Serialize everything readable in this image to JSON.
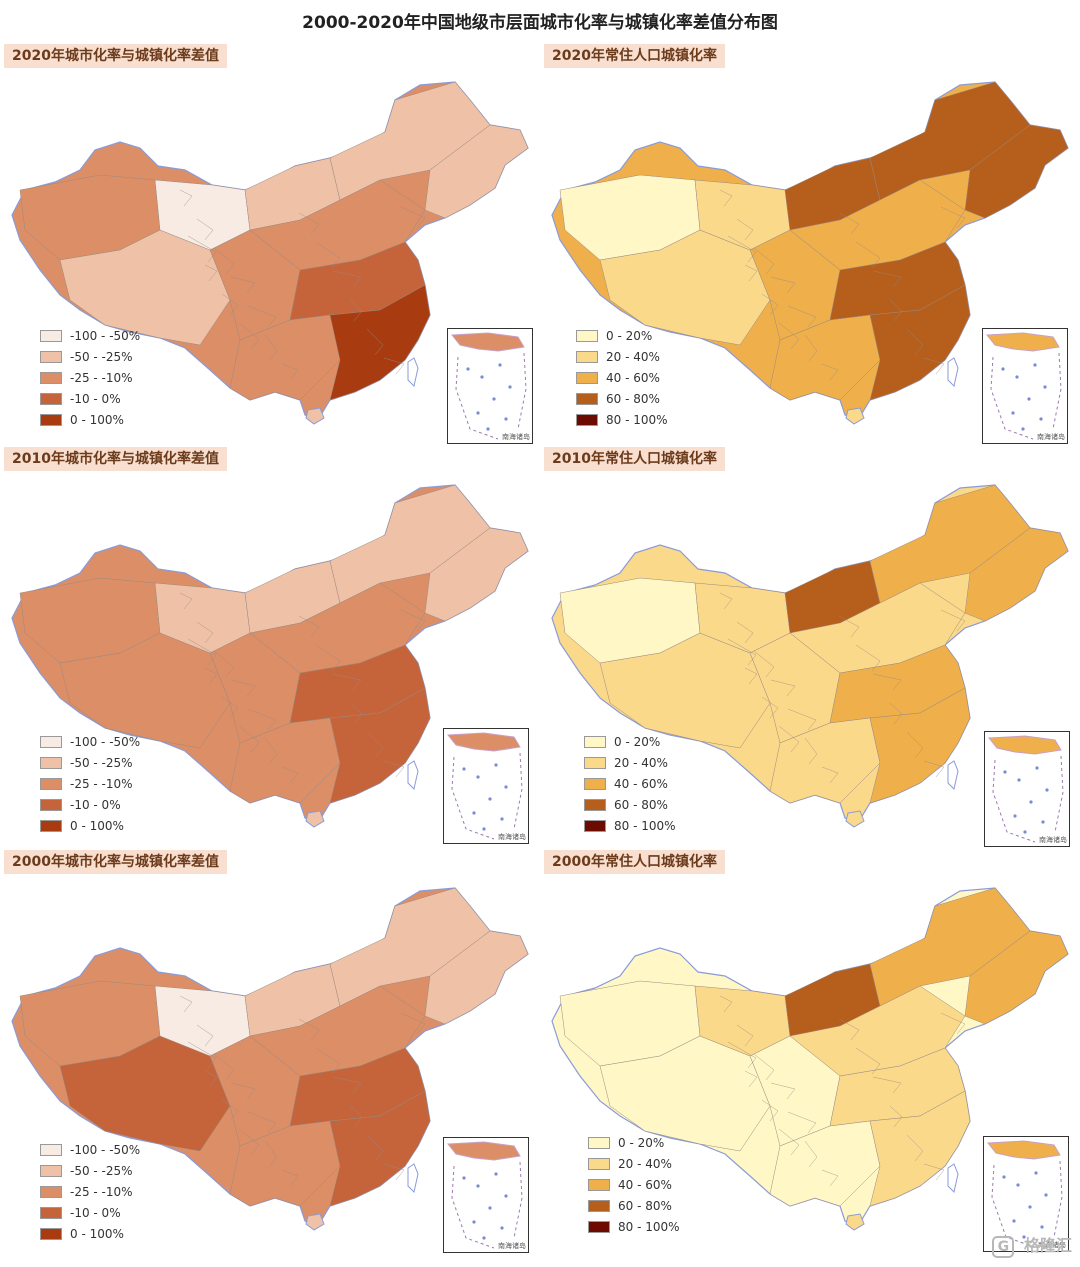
{
  "title": "2000-2020年中国地级市层面城市化率与城镇化率差值分布图",
  "panels": [
    {
      "id": "diff-2020",
      "title": "2020年城市化率与城镇化率差值",
      "legend": [
        {
          "label": "-100 - -50%",
          "color": "#f7ebe4"
        },
        {
          "label": "-50 - -25%",
          "color": "#efc2a8"
        },
        {
          "label": "-25 - -10%",
          "color": "#dc8e67"
        },
        {
          "label": "-10 - 0%",
          "color": "#c5643a"
        },
        {
          "label": "0 - 100%",
          "color": "#a83c10"
        }
      ],
      "dominant_color": "#dc8e67"
    },
    {
      "id": "urb-2020",
      "title": "2020年常住人口城镇化率",
      "legend": [
        {
          "label": "0 - 20%",
          "color": "#fff8c6"
        },
        {
          "label": "20 - 40%",
          "color": "#fbd98b"
        },
        {
          "label": "40 - 60%",
          "color": "#efb04c"
        },
        {
          "label": "60 - 80%",
          "color": "#b65e1c"
        },
        {
          "label": "80 - 100%",
          "color": "#6e0b00"
        }
      ],
      "dominant_color": "#efb04c"
    },
    {
      "id": "diff-2010",
      "title": "2010年城市化率与城镇化率差值",
      "legend": [
        {
          "label": "-100 - -50%",
          "color": "#f7ebe4"
        },
        {
          "label": "-50 - -25%",
          "color": "#efc2a8"
        },
        {
          "label": "-25 - -10%",
          "color": "#dc8e67"
        },
        {
          "label": "-10 - 0%",
          "color": "#c5643a"
        },
        {
          "label": "0 - 100%",
          "color": "#a83c10"
        }
      ],
      "dominant_color": "#dc8e67"
    },
    {
      "id": "urb-2010",
      "title": "2010年常住人口城镇化率",
      "legend": [
        {
          "label": "0 - 20%",
          "color": "#fff8c6"
        },
        {
          "label": "20 - 40%",
          "color": "#fbd98b"
        },
        {
          "label": "40 - 60%",
          "color": "#efb04c"
        },
        {
          "label": "60 - 80%",
          "color": "#b65e1c"
        },
        {
          "label": "80 - 100%",
          "color": "#6e0b00"
        }
      ],
      "dominant_color": "#fbd98b"
    },
    {
      "id": "diff-2000",
      "title": "2000年城市化率与城镇化率差值",
      "legend": [
        {
          "label": "-100 - -50%",
          "color": "#f7ebe4"
        },
        {
          "label": "-50 - -25%",
          "color": "#efc2a8"
        },
        {
          "label": "-25 - -10%",
          "color": "#dc8e67"
        },
        {
          "label": "-10 - 0%",
          "color": "#c5643a"
        },
        {
          "label": "0 - 100%",
          "color": "#a83c10"
        }
      ],
      "dominant_color": "#dc8e67"
    },
    {
      "id": "urb-2000",
      "title": "2000年常住人口城镇化率",
      "legend": [
        {
          "label": "0 - 20%",
          "color": "#fff8c6"
        },
        {
          "label": "20 - 40%",
          "color": "#fbd98b"
        },
        {
          "label": "40 - 60%",
          "color": "#efb04c"
        },
        {
          "label": "60 - 80%",
          "color": "#b65e1c"
        },
        {
          "label": "80 - 100%",
          "color": "#6e0b00"
        }
      ],
      "dominant_color": "#fff8c6"
    }
  ],
  "inset": {
    "label": "南海诸岛",
    "icon": "south-china-sea-inset-icon"
  },
  "watermark": {
    "text": "格隆汇",
    "icon": "gelonghui-logo-icon"
  }
}
